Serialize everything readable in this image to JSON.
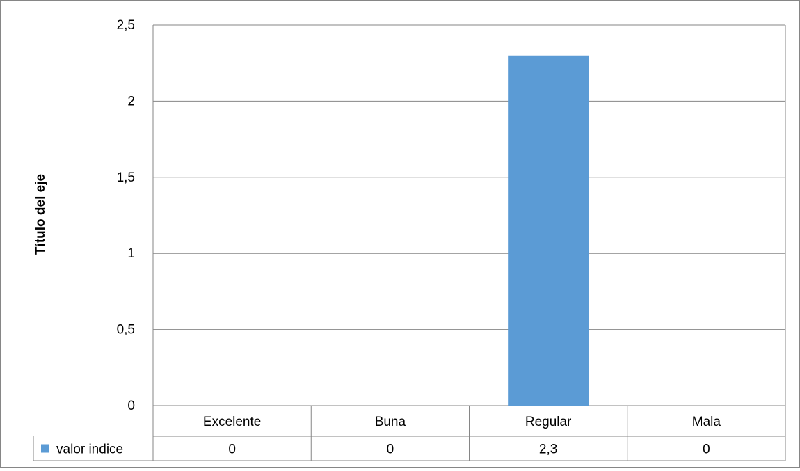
{
  "chart_data": {
    "type": "bar",
    "categories": [
      "Excelente",
      "Buna",
      "Regular",
      "Mala"
    ],
    "series": [
      {
        "name": "valor indice",
        "values": [
          0,
          0,
          2.3,
          0
        ],
        "labels": [
          "0",
          "0",
          "2,3",
          "0"
        ],
        "color": "#5B9BD5"
      }
    ],
    "title": "",
    "xlabel": "",
    "ylabel": "Título del eje",
    "ylim": [
      0,
      2.5
    ],
    "yticks": [
      0,
      0.5,
      1,
      1.5,
      2,
      2.5
    ],
    "ytick_labels": [
      "0",
      "0,5",
      "1",
      "1,5",
      "2",
      "2,5"
    ],
    "grid": true,
    "legend": "data-table-left",
    "colors": {
      "bar": "#5B9BD5",
      "grid": "#868686",
      "border": "#868686"
    }
  }
}
